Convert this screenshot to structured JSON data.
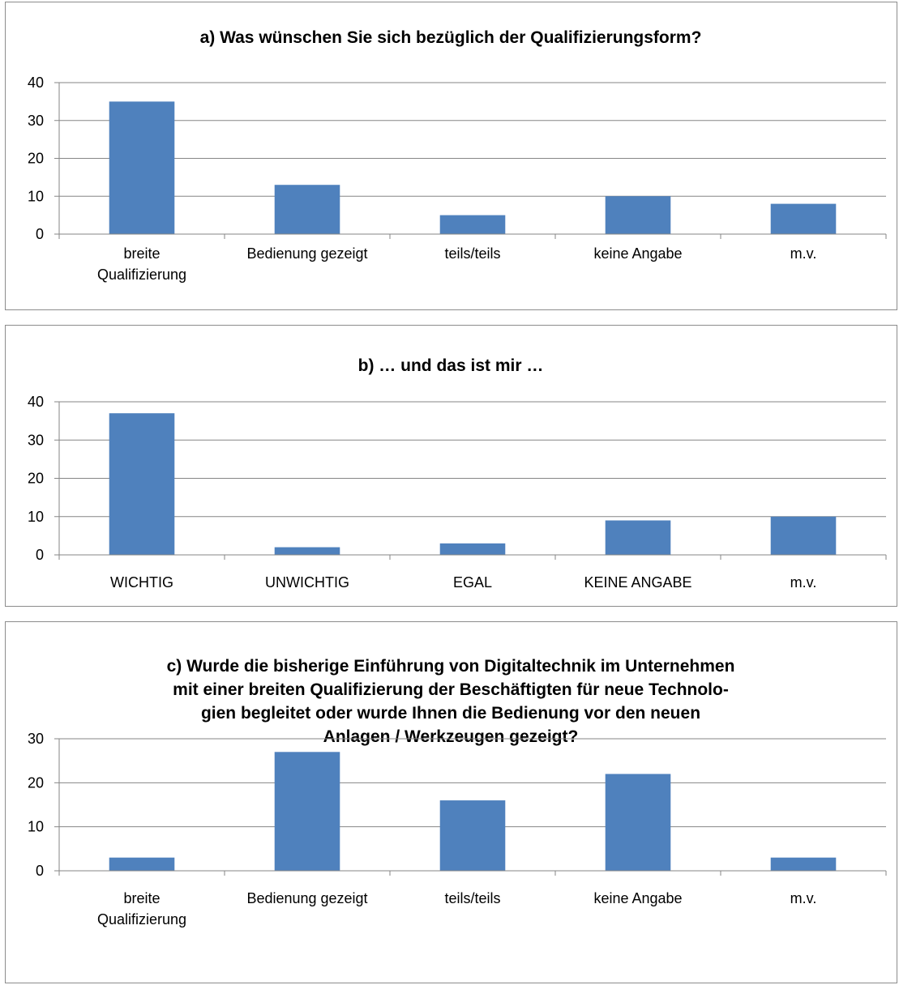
{
  "colors": {
    "bar": "#4f81bd",
    "grid": "#868686",
    "axis": "#868686",
    "border": "#8c8c8c"
  },
  "chart_data": [
    {
      "type": "bar",
      "title_lines": [
        "a) Was wünschen Sie sich bezüglich der Qualifizierungsform?"
      ],
      "categories": [
        [
          "breite",
          "Qualifizierung"
        ],
        [
          "Bedienung gezeigt"
        ],
        [
          "teils/teils"
        ],
        [
          "keine Angabe"
        ],
        [
          "m.v."
        ]
      ],
      "values": [
        35,
        13,
        5,
        10,
        8
      ],
      "ylim": [
        0,
        40
      ],
      "yticks": [
        0,
        10,
        20,
        30,
        40
      ],
      "grid": true,
      "legend": "none"
    },
    {
      "type": "bar",
      "title_lines": [
        "b) … und das ist mir …"
      ],
      "categories": [
        [
          "WICHTIG"
        ],
        [
          "UNWICHTIG"
        ],
        [
          "EGAL"
        ],
        [
          "KEINE ANGABE"
        ],
        [
          "m.v."
        ]
      ],
      "values": [
        37,
        2,
        3,
        9,
        10
      ],
      "ylim": [
        0,
        40
      ],
      "yticks": [
        0,
        10,
        20,
        30,
        40
      ],
      "grid": true,
      "legend": "none"
    },
    {
      "type": "bar",
      "title_lines": [
        "c) Wurde die bisherige Einführung von Digitaltechnik im Unternehmen",
        "mit einer breiten Qualifizierung der Beschäftigten für neue Technolo-",
        "gien begleitet oder wurde Ihnen die Bedienung vor den neuen",
        "Anlagen / Werkzeugen gezeigt?"
      ],
      "categories": [
        [
          "breite",
          "Qualifizierung"
        ],
        [
          "Bedienung gezeigt"
        ],
        [
          "teils/teils"
        ],
        [
          "keine Angabe"
        ],
        [
          "m.v."
        ]
      ],
      "values": [
        3,
        27,
        16,
        22,
        3
      ],
      "ylim": [
        0,
        30
      ],
      "yticks": [
        0,
        10,
        20,
        30
      ],
      "grid": true,
      "legend": "none"
    }
  ]
}
